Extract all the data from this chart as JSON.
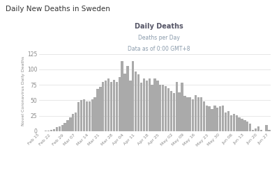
{
  "outer_title": "Daily New Deaths in Sweden",
  "chart_title": "Daily Deaths",
  "subtitle1": "Deaths per Day",
  "subtitle2": "Data as of 0:00 GMT+8",
  "ylabel": "Novel Coronavirus Daily Deaths",
  "bar_color": "#aaaaaa",
  "background_color": "#ffffff",
  "ylim": [
    0,
    130
  ],
  "yticks": [
    0,
    25,
    50,
    75,
    100,
    125
  ],
  "dates": [
    "Feb 15",
    "Feb 22",
    "Feb 29",
    "Mar 07",
    "Mar 14",
    "Mar 21",
    "Mar 28",
    "Apr 04",
    "Apr 11",
    "Apr 18",
    "Apr 25",
    "May 02",
    "May 09",
    "May 16",
    "May 23",
    "May 30",
    "Jun 06",
    "Jun 13",
    "Jun 20",
    "Jun 27"
  ],
  "values": [
    0,
    0,
    1,
    1,
    2,
    3,
    7,
    8,
    10,
    14,
    18,
    22,
    28,
    30,
    47,
    50,
    52,
    48,
    48,
    52,
    55,
    68,
    72,
    80,
    82,
    85,
    80,
    83,
    80,
    88,
    113,
    93,
    105,
    82,
    113,
    97,
    92,
    78,
    85,
    82,
    85,
    75,
    85,
    82,
    75,
    75,
    73,
    70,
    65,
    62,
    80,
    63,
    78,
    57,
    55,
    55,
    52,
    58,
    55,
    55,
    48,
    42,
    40,
    36,
    42,
    38,
    40,
    42,
    30,
    32,
    26,
    28,
    26,
    22,
    20,
    18,
    16,
    12,
    2,
    5,
    8,
    2,
    0,
    10,
    2
  ],
  "title_color": "#555566",
  "subtitle_color": "#8899aa",
  "outer_title_color": "#333333",
  "grid_color": "#dddddd",
  "tick_color": "#888888",
  "legend_dot_color": "#888888",
  "legend_line_color": "#bbbbbb"
}
